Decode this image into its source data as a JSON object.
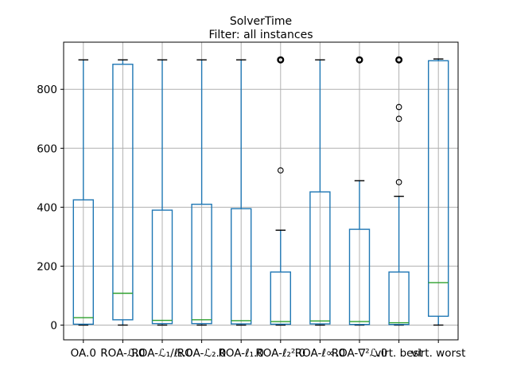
{
  "chart": {
    "title": "SolverTime",
    "subtitle": "Filter: all instances"
  },
  "chart_data": {
    "type": "boxplot",
    "title": "SolverTime",
    "subtitle": "Filter: all instances",
    "xlabel": "",
    "ylabel": "",
    "ylim": [
      -50,
      960
    ],
    "yticks": [
      0,
      200,
      400,
      600,
      800
    ],
    "grid": true,
    "legend": "none",
    "colors": {
      "box": "#1f77b4",
      "whisker": "#1f77b4",
      "median": "#2ca02c",
      "cap": "#000000",
      "flier": "#000000",
      "grid": "#b0b0b0",
      "spine": "#000000",
      "background": "#ffffff",
      "text": "#000000"
    },
    "categories": [
      "OA.0",
      "ROA-ℒ.0",
      "ROA-ℒ₁/ℓ₁.0",
      "ROA-ℒ₂.0",
      "ROA-ℓ₁.0",
      "ROA-ℓ₂².0",
      "ROA-ℓ∞.0",
      "ROA-∇²ℒ.0",
      "virt. best",
      "virt. worst"
    ],
    "boxes": [
      {
        "label": "OA.0",
        "whislo": 0,
        "q1": 3,
        "med": 25,
        "q3": 425,
        "whishi": 900,
        "fliers": []
      },
      {
        "label": "ROA-ℒ.0",
        "whislo": 0,
        "q1": 18,
        "med": 108,
        "q3": 885,
        "whishi": 900,
        "fliers": []
      },
      {
        "label": "ROA-ℒ₁/ℓ₁.0",
        "whislo": 0,
        "q1": 5,
        "med": 16,
        "q3": 390,
        "whishi": 900,
        "fliers": []
      },
      {
        "label": "ROA-ℒ₂.0",
        "whislo": 0,
        "q1": 5,
        "med": 18,
        "q3": 410,
        "whishi": 900,
        "fliers": []
      },
      {
        "label": "ROA-ℓ₁.0",
        "whislo": 0,
        "q1": 4,
        "med": 15,
        "q3": 395,
        "whishi": 900,
        "fliers": []
      },
      {
        "label": "ROA-ℓ₂².0",
        "whislo": 0,
        "q1": 3,
        "med": 12,
        "q3": 180,
        "whishi": 322,
        "fliers": [
          {
            "value": 525,
            "stacked": false
          },
          {
            "value": 900,
            "stacked": true
          }
        ]
      },
      {
        "label": "ROA-ℓ∞.0",
        "whislo": 0,
        "q1": 4,
        "med": 14,
        "q3": 452,
        "whishi": 900,
        "fliers": []
      },
      {
        "label": "ROA-∇²ℒ.0",
        "whislo": 0,
        "q1": 2,
        "med": 12,
        "q3": 325,
        "whishi": 490,
        "fliers": [
          {
            "value": 900,
            "stacked": true
          }
        ]
      },
      {
        "label": "virt. best",
        "whislo": 0,
        "q1": 2,
        "med": 8,
        "q3": 180,
        "whishi": 437,
        "fliers": [
          {
            "value": 485,
            "stacked": false
          },
          {
            "value": 700,
            "stacked": false
          },
          {
            "value": 740,
            "stacked": false
          },
          {
            "value": 900,
            "stacked": true
          }
        ]
      },
      {
        "label": "virt. worst",
        "whislo": 0,
        "q1": 30,
        "med": 144,
        "q3": 897,
        "whishi": 903,
        "fliers": []
      }
    ]
  }
}
